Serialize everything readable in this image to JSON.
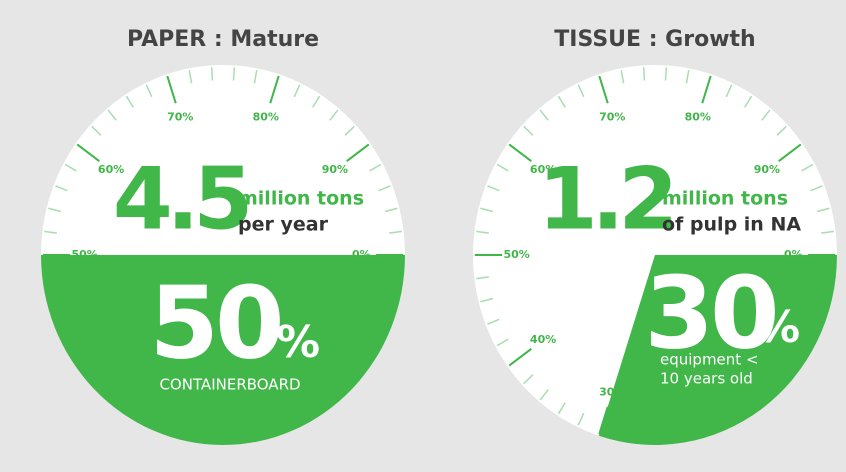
{
  "chart_data": [
    {
      "type": "gauge",
      "title": "PAPER : Mature",
      "headline": 4.5,
      "headline_lines": [
        "million tons",
        "per year"
      ],
      "value": 50,
      "unit": "%",
      "caption": [
        "CONTAINERBOARD"
      ],
      "color": "#41b649",
      "ticks": [
        {
          "value": 50,
          "label": "50%"
        },
        {
          "value": 60,
          "label": "60%"
        },
        {
          "value": 70,
          "label": "70%"
        },
        {
          "value": 80,
          "label": "80%"
        },
        {
          "value": 90,
          "label": "90%"
        },
        {
          "value": 0,
          "label": "0%"
        }
      ]
    },
    {
      "type": "gauge",
      "title": "TISSUE : Growth",
      "headline": 1.2,
      "headline_lines": [
        "million tons",
        "of pulp in NA"
      ],
      "value": 30,
      "unit": "%",
      "caption": [
        "equipment <",
        "10 years old"
      ],
      "color": "#41b649",
      "ticks": [
        {
          "value": 30,
          "label": "30%"
        },
        {
          "value": 40,
          "label": "40%"
        },
        {
          "value": 50,
          "label": "50%"
        },
        {
          "value": 60,
          "label": "60%"
        },
        {
          "value": 70,
          "label": "70%"
        },
        {
          "value": 80,
          "label": "80%"
        },
        {
          "value": 90,
          "label": "90%"
        },
        {
          "value": 0,
          "label": "0%"
        }
      ]
    }
  ]
}
